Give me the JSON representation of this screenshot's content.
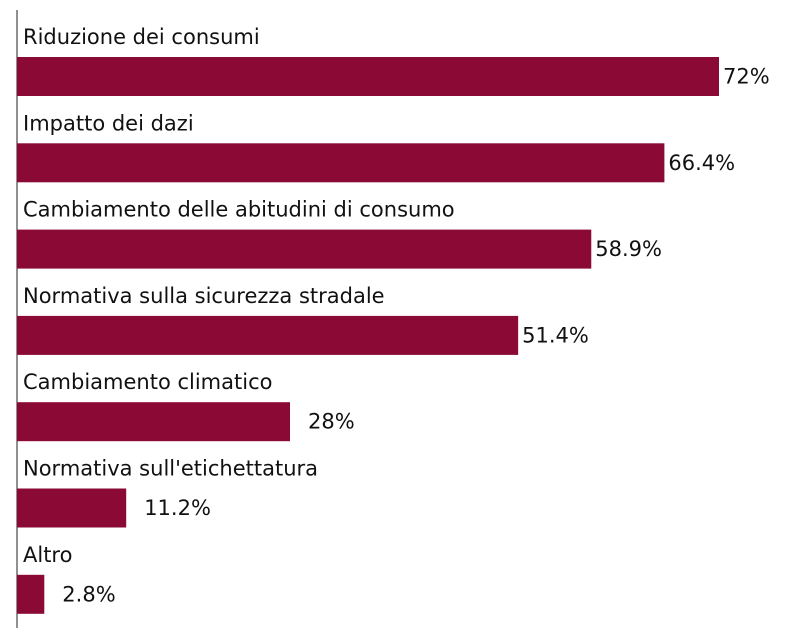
{
  "chart_data": {
    "type": "hbar",
    "categories": [
      "Riduzione dei consumi",
      "Impatto dei dazi",
      "Cambiamento delle abitudini di consumo",
      "Normativa sulla sicurezza stradale",
      "Cambiamento climatico",
      "Normativa sull'etichettatura",
      "Altro"
    ],
    "values": [
      72,
      66.4,
      58.9,
      51.4,
      28,
      11.2,
      2.8
    ],
    "value_labels": [
      "72%",
      "66.4%",
      "58.9%",
      "51.4%",
      "28%",
      "11.2%",
      "2.8%"
    ],
    "color": "#8a0a35"
  }
}
